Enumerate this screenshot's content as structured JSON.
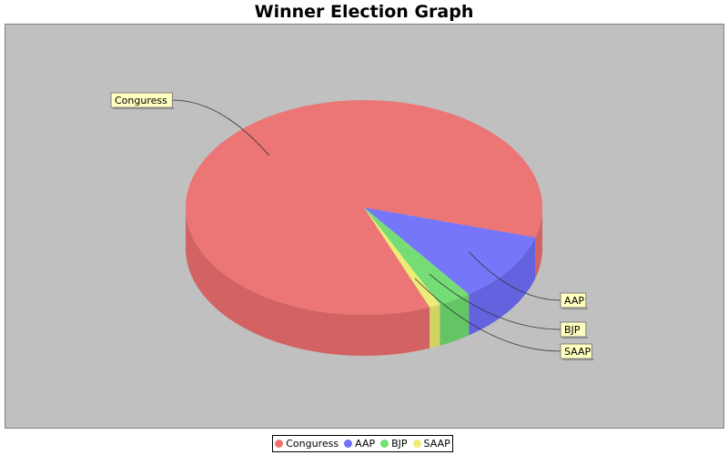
{
  "chart_data": {
    "type": "pie",
    "title": "Winner Election Graph",
    "categories": [
      "Conguress",
      "AAP",
      "BJP",
      "SAAP"
    ],
    "values": [
      85.5,
      10.5,
      3.0,
      1.0
    ],
    "colors": [
      "#f07070",
      "#7070ff",
      "#70e070",
      "#f0f070"
    ],
    "legend_position": "bottom",
    "three_d": true
  }
}
